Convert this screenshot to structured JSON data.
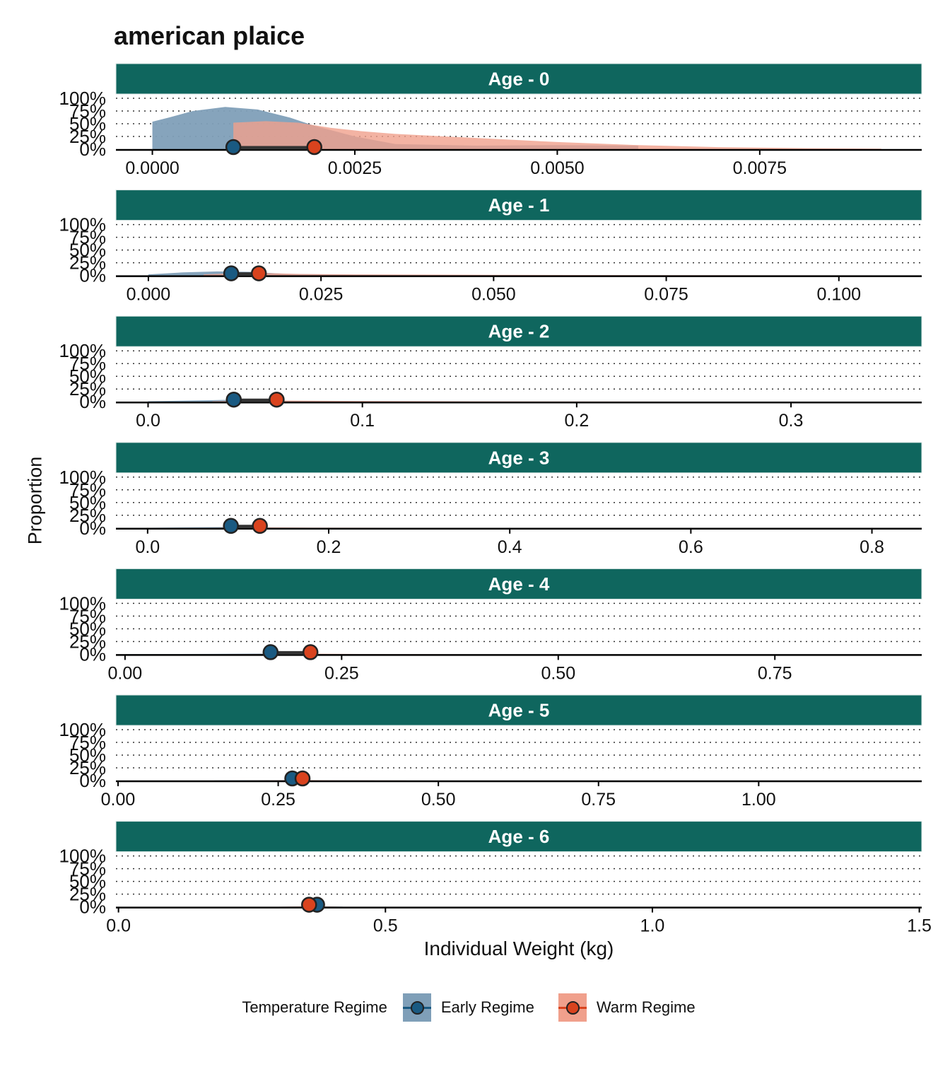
{
  "chart_data": {
    "type": "area",
    "title": "american plaice",
    "ylabel": "Proportion",
    "xlabel": "Individual Weight (kg)",
    "y_ticks": [
      "0%",
      "25%",
      "50%",
      "75%",
      "100%"
    ],
    "legend": {
      "title": "Temperature Regime",
      "placement": "bottom",
      "entries": [
        {
          "name": "Early Regime",
          "fill": "#7f9fb8",
          "point": "#1a5a82"
        },
        {
          "name": "Warm Regime",
          "fill": "#f0a08c",
          "point": "#d9431e"
        }
      ]
    },
    "colors": {
      "strip": "#0f665e",
      "strip_text": "#ffffff",
      "early_fill": "#7f9fb8",
      "warm_fill": "#f0a08c",
      "early_point": "#1a5a82",
      "warm_point": "#d9431e"
    },
    "facets": [
      {
        "label": "Age - 0",
        "xlim": [
          -0.00045,
          0.0095
        ],
        "x_ticks": [
          0,
          0.0025,
          0.005,
          0.0075
        ],
        "x_tick_labels": [
          "0.0000",
          "0.0025",
          "0.0050",
          "0.0075"
        ],
        "series": [
          {
            "name": "Early Regime",
            "points": [
              [
                0,
                54
              ],
              [
                0.0002,
                62
              ],
              [
                0.0005,
                75
              ],
              [
                0.0009,
                83
              ],
              [
                0.0013,
                78
              ],
              [
                0.0017,
                62
              ],
              [
                0.002,
                46
              ],
              [
                0.0025,
                25
              ],
              [
                0.003,
                10
              ],
              [
                0.004,
                7
              ],
              [
                0.005,
                8
              ],
              [
                0.006,
                7
              ]
            ],
            "median": 0.001
          },
          {
            "name": "Warm Regime",
            "points": [
              [
                0.001,
                52
              ],
              [
                0.0014,
                55
              ],
              [
                0.0018,
                52
              ],
              [
                0.0022,
                42
              ],
              [
                0.0026,
                35
              ],
              [
                0.003,
                30
              ],
              [
                0.004,
                22
              ],
              [
                0.005,
                14
              ],
              [
                0.006,
                8
              ],
              [
                0.007,
                4
              ],
              [
                0.008,
                2
              ],
              [
                0.009,
                1
              ]
            ],
            "median": 0.002
          }
        ]
      },
      {
        "label": "Age - 1",
        "xlim": [
          -0.0047,
          0.112
        ],
        "x_ticks": [
          0,
          0.025,
          0.05,
          0.075,
          0.1
        ],
        "x_tick_labels": [
          "0.000",
          "0.025",
          "0.050",
          "0.075",
          "0.100"
        ],
        "series": [
          {
            "name": "Early Regime",
            "points": [
              [
                0,
                2
              ],
              [
                0.005,
                6
              ],
              [
                0.01,
                8
              ],
              [
                0.015,
                7
              ],
              [
                0.02,
                3
              ],
              [
                0.03,
                1.5
              ],
              [
                0.045,
                0.8
              ],
              [
                0.06,
                0.4
              ]
            ],
            "median": 0.012
          },
          {
            "name": "Warm Regime",
            "points": [
              [
                0.008,
                2
              ],
              [
                0.012,
                4
              ],
              [
                0.016,
                5
              ],
              [
                0.022,
                3
              ],
              [
                0.03,
                2
              ],
              [
                0.05,
                1.2
              ],
              [
                0.07,
                0.6
              ],
              [
                0.09,
                0.3
              ],
              [
                0.106,
                0.1
              ]
            ],
            "median": 0.016
          }
        ]
      },
      {
        "label": "Age - 2",
        "xlim": [
          -0.015,
          0.361
        ],
        "x_ticks": [
          0,
          0.1,
          0.2,
          0.3
        ],
        "x_tick_labels": [
          "0.0",
          "0.1",
          "0.2",
          "0.3"
        ],
        "series": [
          {
            "name": "Early Regime",
            "points": [
              [
                0,
                1
              ],
              [
                0.03,
                3
              ],
              [
                0.04,
                4
              ],
              [
                0.06,
                2
              ],
              [
                0.1,
                1
              ],
              [
                0.15,
                0.5
              ]
            ],
            "median": 0.04
          },
          {
            "name": "Warm Regime",
            "points": [
              [
                0.03,
                1
              ],
              [
                0.06,
                2.5
              ],
              [
                0.1,
                1.5
              ],
              [
                0.15,
                0.8
              ],
              [
                0.25,
                0.3
              ],
              [
                0.34,
                0.1
              ]
            ],
            "median": 0.06
          }
        ]
      },
      {
        "label": "Age - 3",
        "xlim": [
          -0.035,
          0.855
        ],
        "x_ticks": [
          0,
          0.2,
          0.4,
          0.6,
          0.8
        ],
        "x_tick_labels": [
          "0.0",
          "0.2",
          "0.4",
          "0.6",
          "0.8"
        ],
        "series": [
          {
            "name": "Early Regime",
            "points": [
              [
                0,
                0.5
              ],
              [
                0.06,
                1.5
              ],
              [
                0.09,
                2
              ],
              [
                0.13,
                1
              ],
              [
                0.2,
                0.3
              ]
            ],
            "median": 0.092
          },
          {
            "name": "Warm Regime",
            "points": [
              [
                0.07,
                0.5
              ],
              [
                0.12,
                1.5
              ],
              [
                0.18,
                0.8
              ],
              [
                0.3,
                0.3
              ],
              [
                0.6,
                0.1
              ]
            ],
            "median": 0.124
          }
        ]
      },
      {
        "label": "Age - 4",
        "xlim": [
          -0.0105,
          0.9195
        ],
        "x_ticks": [
          0,
          0.25,
          0.5,
          0.75
        ],
        "x_tick_labels": [
          "0.00",
          "0.25",
          "0.50",
          "0.75"
        ],
        "series": [
          {
            "name": "Early Regime",
            "points": [
              [
                0,
                0.3
              ],
              [
                0.1,
                0.8
              ],
              [
                0.17,
                1.5
              ],
              [
                0.22,
                0.6
              ],
              [
                0.3,
                0.2
              ]
            ],
            "median": 0.168
          },
          {
            "name": "Warm Regime",
            "points": [
              [
                0.12,
                0.3
              ],
              [
                0.21,
                1.2
              ],
              [
                0.28,
                0.5
              ],
              [
                0.4,
                0.1
              ]
            ],
            "median": 0.214
          }
        ]
      },
      {
        "label": "Age - 5",
        "xlim": [
          -0.0033,
          1.2545
        ],
        "x_ticks": [
          0,
          0.25,
          0.5,
          0.75,
          1.0
        ],
        "x_tick_labels": [
          "0.00",
          "0.25",
          "0.50",
          "0.75",
          "1.00"
        ],
        "series": [
          {
            "name": "Early Regime",
            "points": [
              [
                0.15,
                0.2
              ],
              [
                0.27,
                1
              ],
              [
                0.32,
                0.4
              ],
              [
                0.4,
                0.1
              ]
            ],
            "median": 0.272
          },
          {
            "name": "Warm Regime",
            "points": [
              [
                0.2,
                0.2
              ],
              [
                0.29,
                1
              ],
              [
                0.35,
                0.4
              ],
              [
                0.45,
                0.1
              ]
            ],
            "median": 0.288
          }
        ]
      },
      {
        "label": "Age - 6",
        "xlim": [
          -0.0048,
          1.5045
        ],
        "x_ticks": [
          0,
          0.5,
          1.0,
          1.5
        ],
        "x_tick_labels": [
          "0.0",
          "0.5",
          "1.0",
          "1.5"
        ],
        "series": [
          {
            "name": "Early Regime",
            "points": [
              [
                0.3,
                0.2
              ],
              [
                0.37,
                1
              ],
              [
                0.42,
                0.3
              ]
            ],
            "median": 0.372
          },
          {
            "name": "Warm Regime",
            "points": [
              [
                0.3,
                0.2
              ],
              [
                0.357,
                1
              ],
              [
                0.41,
                0.3
              ]
            ],
            "median": 0.357
          }
        ]
      }
    ]
  }
}
